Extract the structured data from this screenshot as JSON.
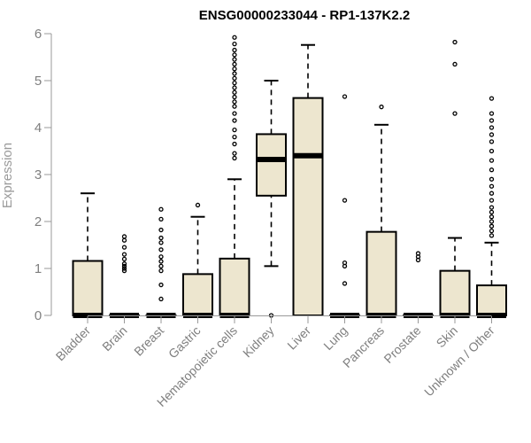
{
  "chart_data": {
    "type": "boxplot",
    "title": "ENSG00000233044 - RP1-137K2.2",
    "xlabel": "",
    "ylabel": "Expression",
    "ylim": [
      0,
      6
    ],
    "yticks": [
      0,
      1,
      2,
      3,
      4,
      5,
      6
    ],
    "grid": false,
    "legend": "none",
    "colors": {
      "box_fill": "#ede6cf",
      "stroke": "#000000",
      "axis": "#9a9a9a"
    },
    "categories": [
      "Bladder",
      "Brain",
      "Breast",
      "Gastric",
      "Hematopoietic cells",
      "Kidney",
      "Liver",
      "Lung",
      "Pancreas",
      "Prostate",
      "Skin",
      "Unknown / Other"
    ],
    "boxes": [
      {
        "category": "Bladder",
        "min": 0,
        "q1": 0,
        "median": 0,
        "q3": 1.16,
        "max": 2.6,
        "outliers": []
      },
      {
        "category": "Brain",
        "min": 0,
        "q1": 0,
        "median": 0,
        "q3": 0,
        "max": 0,
        "outliers": [
          0.95,
          1.0,
          1.05,
          1.1,
          1.2,
          1.3,
          1.45,
          1.6,
          1.68
        ]
      },
      {
        "category": "Breast",
        "min": 0,
        "q1": 0,
        "median": 0,
        "q3": 0,
        "max": 0,
        "outliers": [
          0.35,
          0.65,
          0.95,
          1.05,
          1.15,
          1.25,
          1.4,
          1.55,
          1.65,
          1.82,
          2.05,
          2.26
        ]
      },
      {
        "category": "Gastric",
        "min": 0,
        "q1": 0,
        "median": 0,
        "q3": 0.88,
        "max": 2.1,
        "outliers": [
          2.35
        ]
      },
      {
        "category": "Hematopoietic cells",
        "min": 0,
        "q1": 0,
        "median": 0,
        "q3": 1.21,
        "max": 2.9,
        "outliers": [
          3.35,
          3.45,
          3.65,
          3.8,
          3.95,
          4.15,
          4.3,
          4.45,
          4.55,
          4.65,
          4.75,
          4.85,
          4.95,
          5.05,
          5.15,
          5.25,
          5.35,
          5.45,
          5.55,
          5.65,
          5.78,
          5.92
        ]
      },
      {
        "category": "Kidney",
        "min": 1.05,
        "q1": 2.55,
        "median": 3.32,
        "q3": 3.86,
        "max": 5.0,
        "outliers": [
          0
        ]
      },
      {
        "category": "Liver",
        "min": 0,
        "q1": 0,
        "median": 3.4,
        "q3": 4.63,
        "max": 5.76,
        "outliers": []
      },
      {
        "category": "Lung",
        "min": 0,
        "q1": 0,
        "median": 0,
        "q3": 0,
        "max": 0,
        "outliers": [
          0.68,
          1.05,
          1.12,
          2.45,
          4.66
        ]
      },
      {
        "category": "Pancreas",
        "min": 0,
        "q1": 0,
        "median": 0,
        "q3": 1.78,
        "max": 4.06,
        "outliers": [
          4.44
        ]
      },
      {
        "category": "Prostate",
        "min": 0,
        "q1": 0,
        "median": 0,
        "q3": 0,
        "max": 0,
        "outliers": [
          1.18,
          1.25,
          1.32
        ]
      },
      {
        "category": "Skin",
        "min": 0,
        "q1": 0,
        "median": 0,
        "q3": 0.95,
        "max": 1.65,
        "outliers": [
          4.3,
          5.35,
          5.82
        ]
      },
      {
        "category": "Unknown / Other",
        "min": 0,
        "q1": 0,
        "median": 0,
        "q3": 0.64,
        "max": 1.55,
        "outliers": [
          1.7,
          1.8,
          1.9,
          2.0,
          2.1,
          2.2,
          2.3,
          2.45,
          2.6,
          2.75,
          2.9,
          3.1,
          3.3,
          3.5,
          3.7,
          3.85,
          4.0,
          4.15,
          4.3,
          4.62
        ]
      }
    ]
  }
}
